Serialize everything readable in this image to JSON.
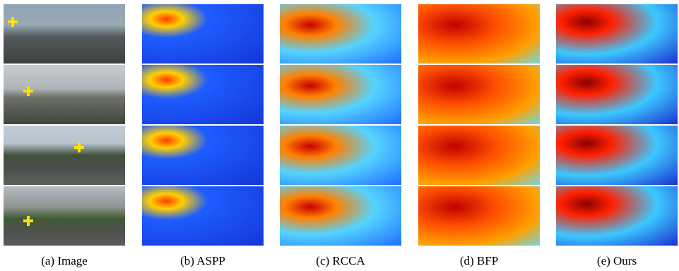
{
  "figure": {
    "captions": {
      "a": "(a)  Image",
      "b": "(b)  ASPP",
      "c": "(c)  RCCA",
      "d": "(d)  BFP",
      "e": "(e)  Ours"
    }
  }
}
